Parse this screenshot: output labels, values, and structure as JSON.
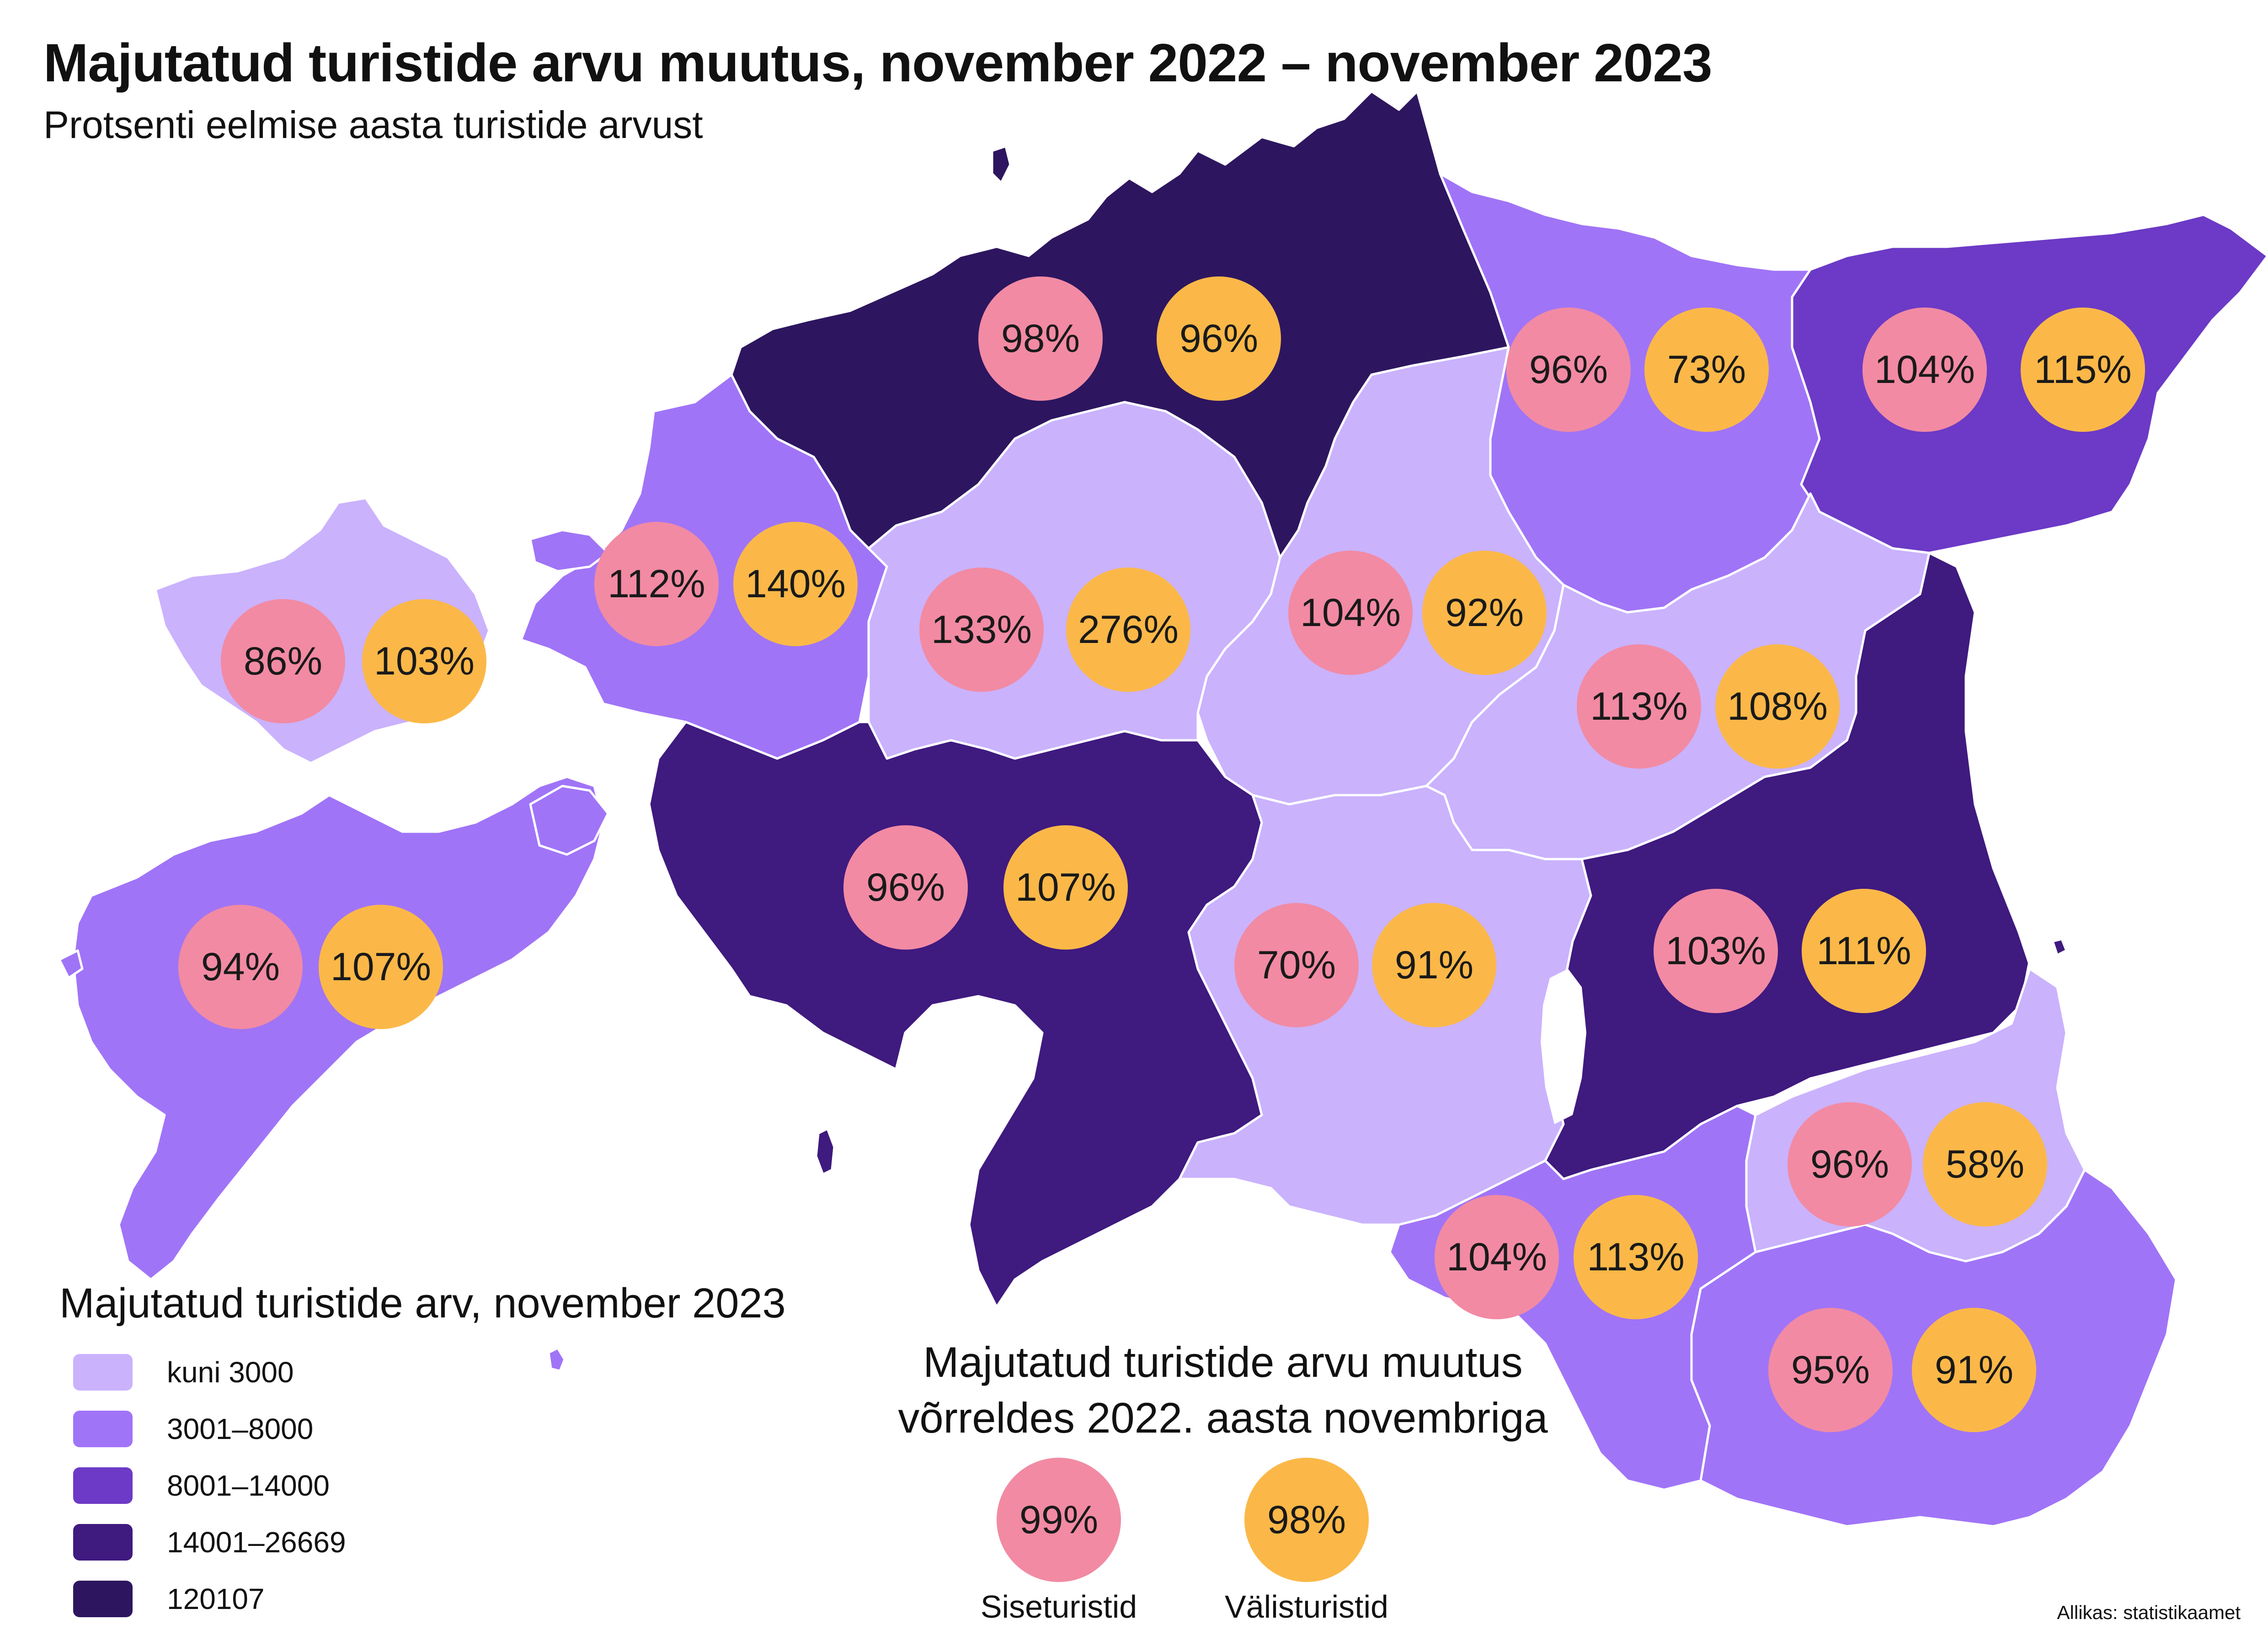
{
  "title": "Majutatud turistide arvu muutus, november 2022 – november 2023",
  "subtitle": "Protsenti eelmise aasta turistide arvust",
  "colors": {
    "kuni3000": "#cab2fd",
    "c3001_8000": "#a074f7",
    "c8001_14000": "#6c3ac6",
    "c14001_26669": "#3f1a7f",
    "c120107": "#2d165f",
    "domestic": "#f28aa3",
    "foreign": "#fbb848"
  },
  "regions": [
    {
      "name": "Harju",
      "domestic": "98%",
      "foreign": "96%",
      "class": "c120107"
    },
    {
      "name": "Lääne-Viru",
      "domestic": "96%",
      "foreign": "73%",
      "class": "c3001_8000"
    },
    {
      "name": "Ida-Viru",
      "domestic": "104%",
      "foreign": "115%",
      "class": "c8001_14000"
    },
    {
      "name": "Hiiu",
      "domestic": "86%",
      "foreign": "103%",
      "class": "kuni3000"
    },
    {
      "name": "Lääne",
      "domestic": "112%",
      "foreign": "140%",
      "class": "c3001_8000"
    },
    {
      "name": "Rapla",
      "domestic": "133%",
      "foreign": "276%",
      "class": "kuni3000"
    },
    {
      "name": "Järva",
      "domestic": "104%",
      "foreign": "92%",
      "class": "kuni3000"
    },
    {
      "name": "Jõgeva",
      "domestic": "113%",
      "foreign": "108%",
      "class": "kuni3000"
    },
    {
      "name": "Saare",
      "domestic": "94%",
      "foreign": "107%",
      "class": "c3001_8000"
    },
    {
      "name": "Pärnu",
      "domestic": "96%",
      "foreign": "107%",
      "class": "c14001_26669"
    },
    {
      "name": "Viljandi",
      "domestic": "70%",
      "foreign": "91%",
      "class": "kuni3000"
    },
    {
      "name": "Tartu",
      "domestic": "103%",
      "foreign": "111%",
      "class": "c14001_26669"
    },
    {
      "name": "Põlva",
      "domestic": "96%",
      "foreign": "58%",
      "class": "kuni3000"
    },
    {
      "name": "Valga",
      "domestic": "104%",
      "foreign": "113%",
      "class": "c3001_8000"
    },
    {
      "name": "Võru",
      "domestic": "95%",
      "foreign": "91%",
      "class": "c3001_8000"
    }
  ],
  "legend": {
    "title": "Majutatud turistide arv, november 2023",
    "items": [
      {
        "label": "kuni 3000",
        "color": "#cab2fd"
      },
      {
        "label": "3001–8000",
        "color": "#a074f7"
      },
      {
        "label": "8001–14000",
        "color": "#6c3ac6"
      },
      {
        "label": "14001–26669",
        "color": "#3f1a7f"
      },
      {
        "label": "120107",
        "color": "#2d165f"
      }
    ]
  },
  "change": {
    "title_line1": "Majutatud turistide arvu muutus",
    "title_line2": "võrreldes 2022. aasta novembriga",
    "domestic_value": "99%",
    "domestic_label": "Siseturistid",
    "foreign_value": "98%",
    "foreign_label": "Välisturistid"
  },
  "source": "Allikas: statistikaamet"
}
